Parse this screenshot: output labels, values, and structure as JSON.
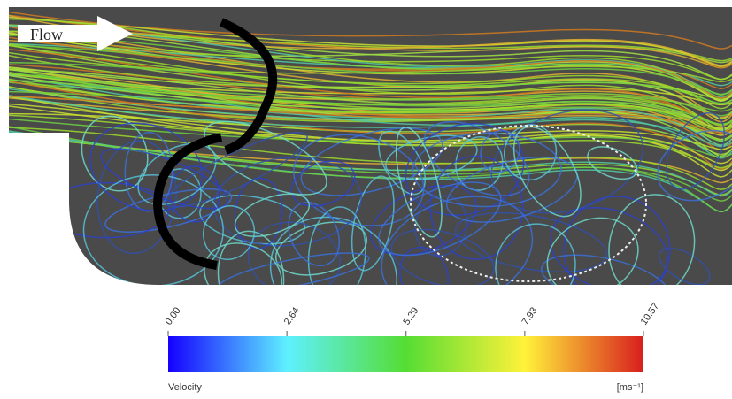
{
  "figure": {
    "flow_label": "Flow",
    "colorbar": {
      "label": "Velocity",
      "unit": "[ms⁻¹]",
      "ticks": [
        {
          "value": 0,
          "label": "0.00"
        },
        {
          "value": 2.64,
          "label": "2.64"
        },
        {
          "value": 5.29,
          "label": "5.29"
        },
        {
          "value": 7.93,
          "label": "7.93"
        },
        {
          "value": 10.57,
          "label": "10.57"
        }
      ]
    }
  }
}
